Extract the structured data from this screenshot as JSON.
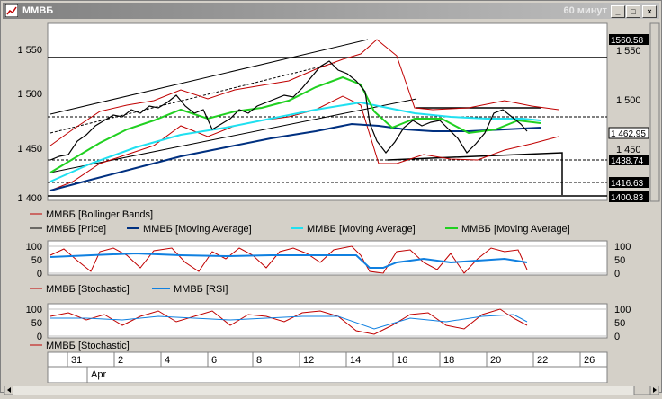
{
  "window": {
    "title": "ММВБ",
    "timeframe": "60 минут",
    "buttons": {
      "minimize": "_",
      "maximize": "□",
      "close": "×"
    }
  },
  "price_pane": {
    "y_ticks": [
      "1 550",
      "1 500",
      "1 450",
      "1 400"
    ],
    "right_ticks": [
      "1 550",
      "1 500",
      "1 450"
    ],
    "price_tags": [
      "1560.58",
      "1 462.95",
      "1438.74",
      "1416.63",
      "1400.83"
    ],
    "legend": [
      {
        "text": "ММВБ [Bollinger Bands]",
        "color": "#c00000"
      },
      {
        "text": "ММВБ [Price]",
        "color": "#000000"
      },
      {
        "text": "ММВБ [Moving Average]",
        "color": "#003080"
      },
      {
        "text": "ММВБ [Moving Average]",
        "color": "#20e0f0"
      },
      {
        "text": "ММВБ [Moving Average]",
        "color": "#20d020"
      }
    ]
  },
  "osc_pane_1": {
    "ticks_left": [
      "100",
      "50",
      "0"
    ],
    "ticks_right": [
      "100",
      "50",
      "0"
    ],
    "legend": [
      {
        "text": "ММВБ [Stochastic]",
        "color": "#c00000"
      },
      {
        "text": "ММВБ [RSI]",
        "color": "#1080e0"
      }
    ]
  },
  "osc_pane_2": {
    "ticks_left": [
      "100",
      "50",
      "0"
    ],
    "ticks_right": [
      "100",
      "50",
      "0"
    ],
    "legend": [
      {
        "text": "ММВБ [Stochastic]",
        "color": "#c00000"
      }
    ]
  },
  "time_axis": {
    "days": [
      "31",
      "2",
      "4",
      "6",
      "8",
      "12",
      "14",
      "16",
      "18",
      "20",
      "22",
      "26"
    ],
    "month": "Apr"
  },
  "colors": {
    "bollinger": "#c00000",
    "price": "#000000",
    "ma_long": "#003080",
    "ma_mid": "#20e0f0",
    "ma_short": "#20d020",
    "rsi": "#1080e0"
  }
}
